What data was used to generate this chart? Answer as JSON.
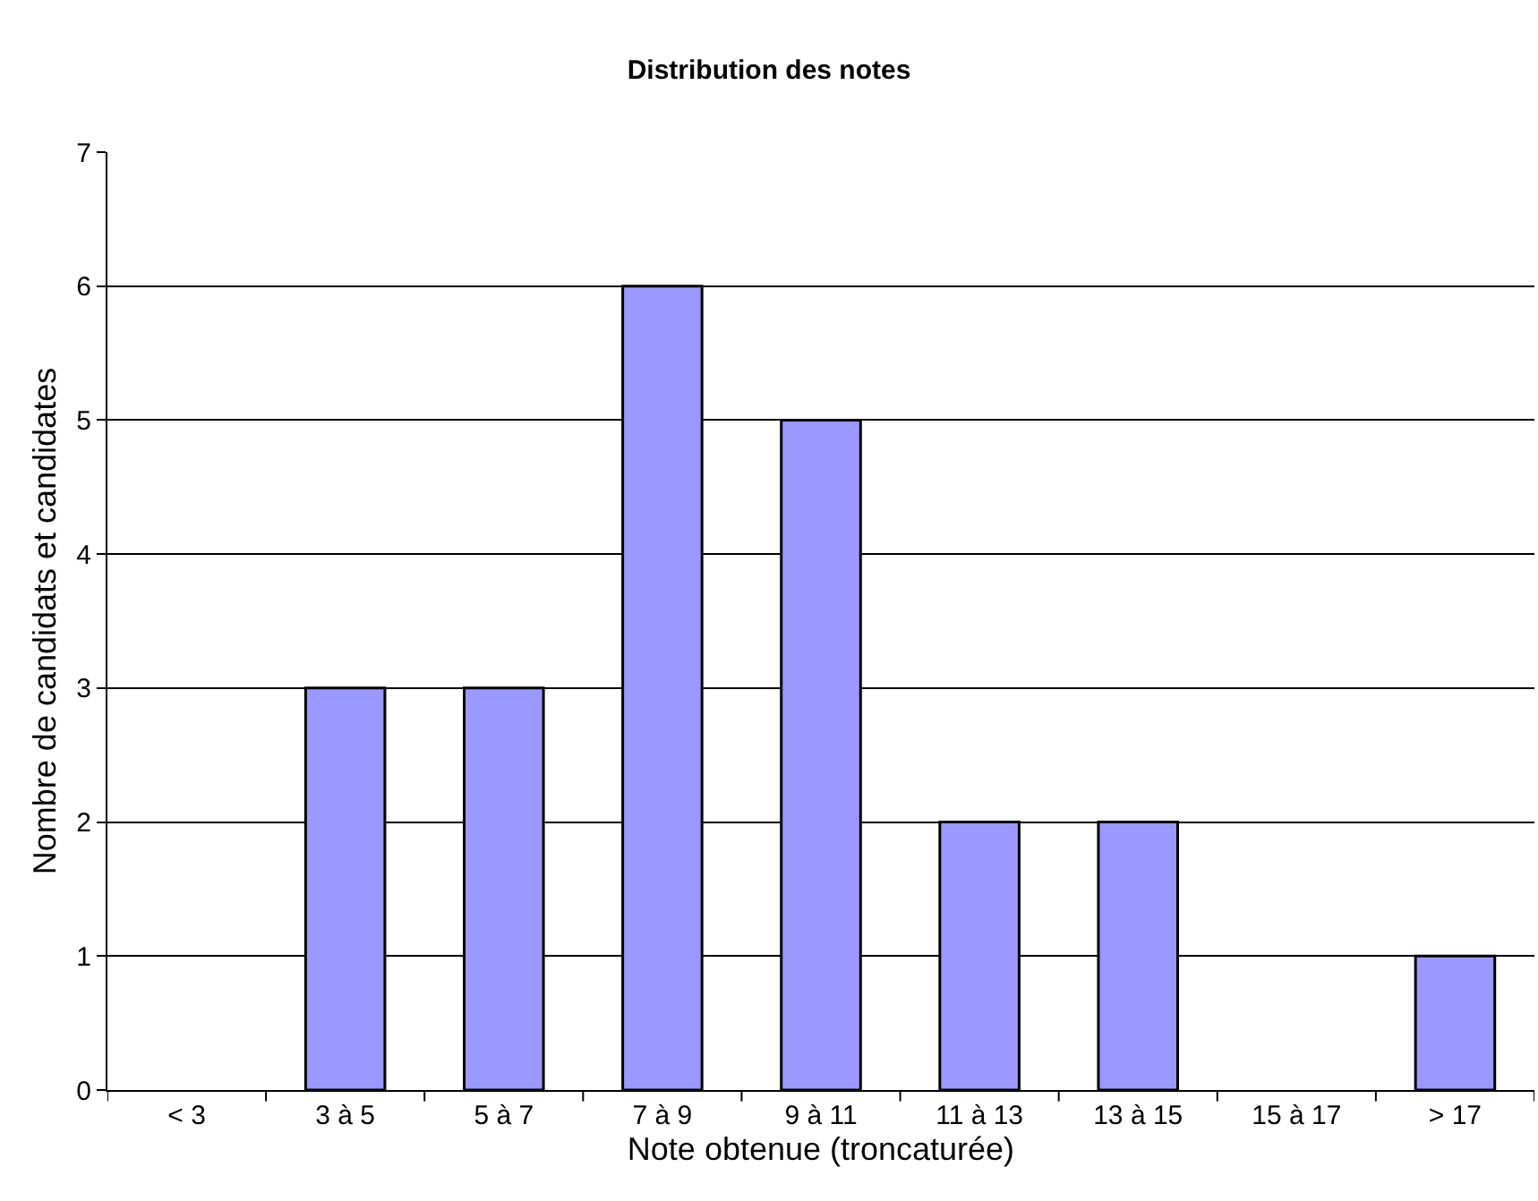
{
  "chart_data": {
    "type": "bar",
    "title": "Distribution des notes",
    "xlabel": "Note obtenue (troncaturée)",
    "ylabel": "Nombre de candidats et candidates",
    "categories": [
      "< 3",
      "3 à 5",
      "5 à 7",
      "7 à 9",
      "9 à 11",
      "11 à 13",
      "13 à 15",
      "15 à 17",
      "> 17"
    ],
    "values": [
      0,
      3,
      3,
      6,
      5,
      2,
      2,
      0,
      1
    ],
    "color": "#9999ff",
    "ylim": [
      0,
      7
    ],
    "yticks": [
      0,
      1,
      2,
      3,
      4,
      5,
      6,
      7
    ],
    "grid": "y"
  }
}
